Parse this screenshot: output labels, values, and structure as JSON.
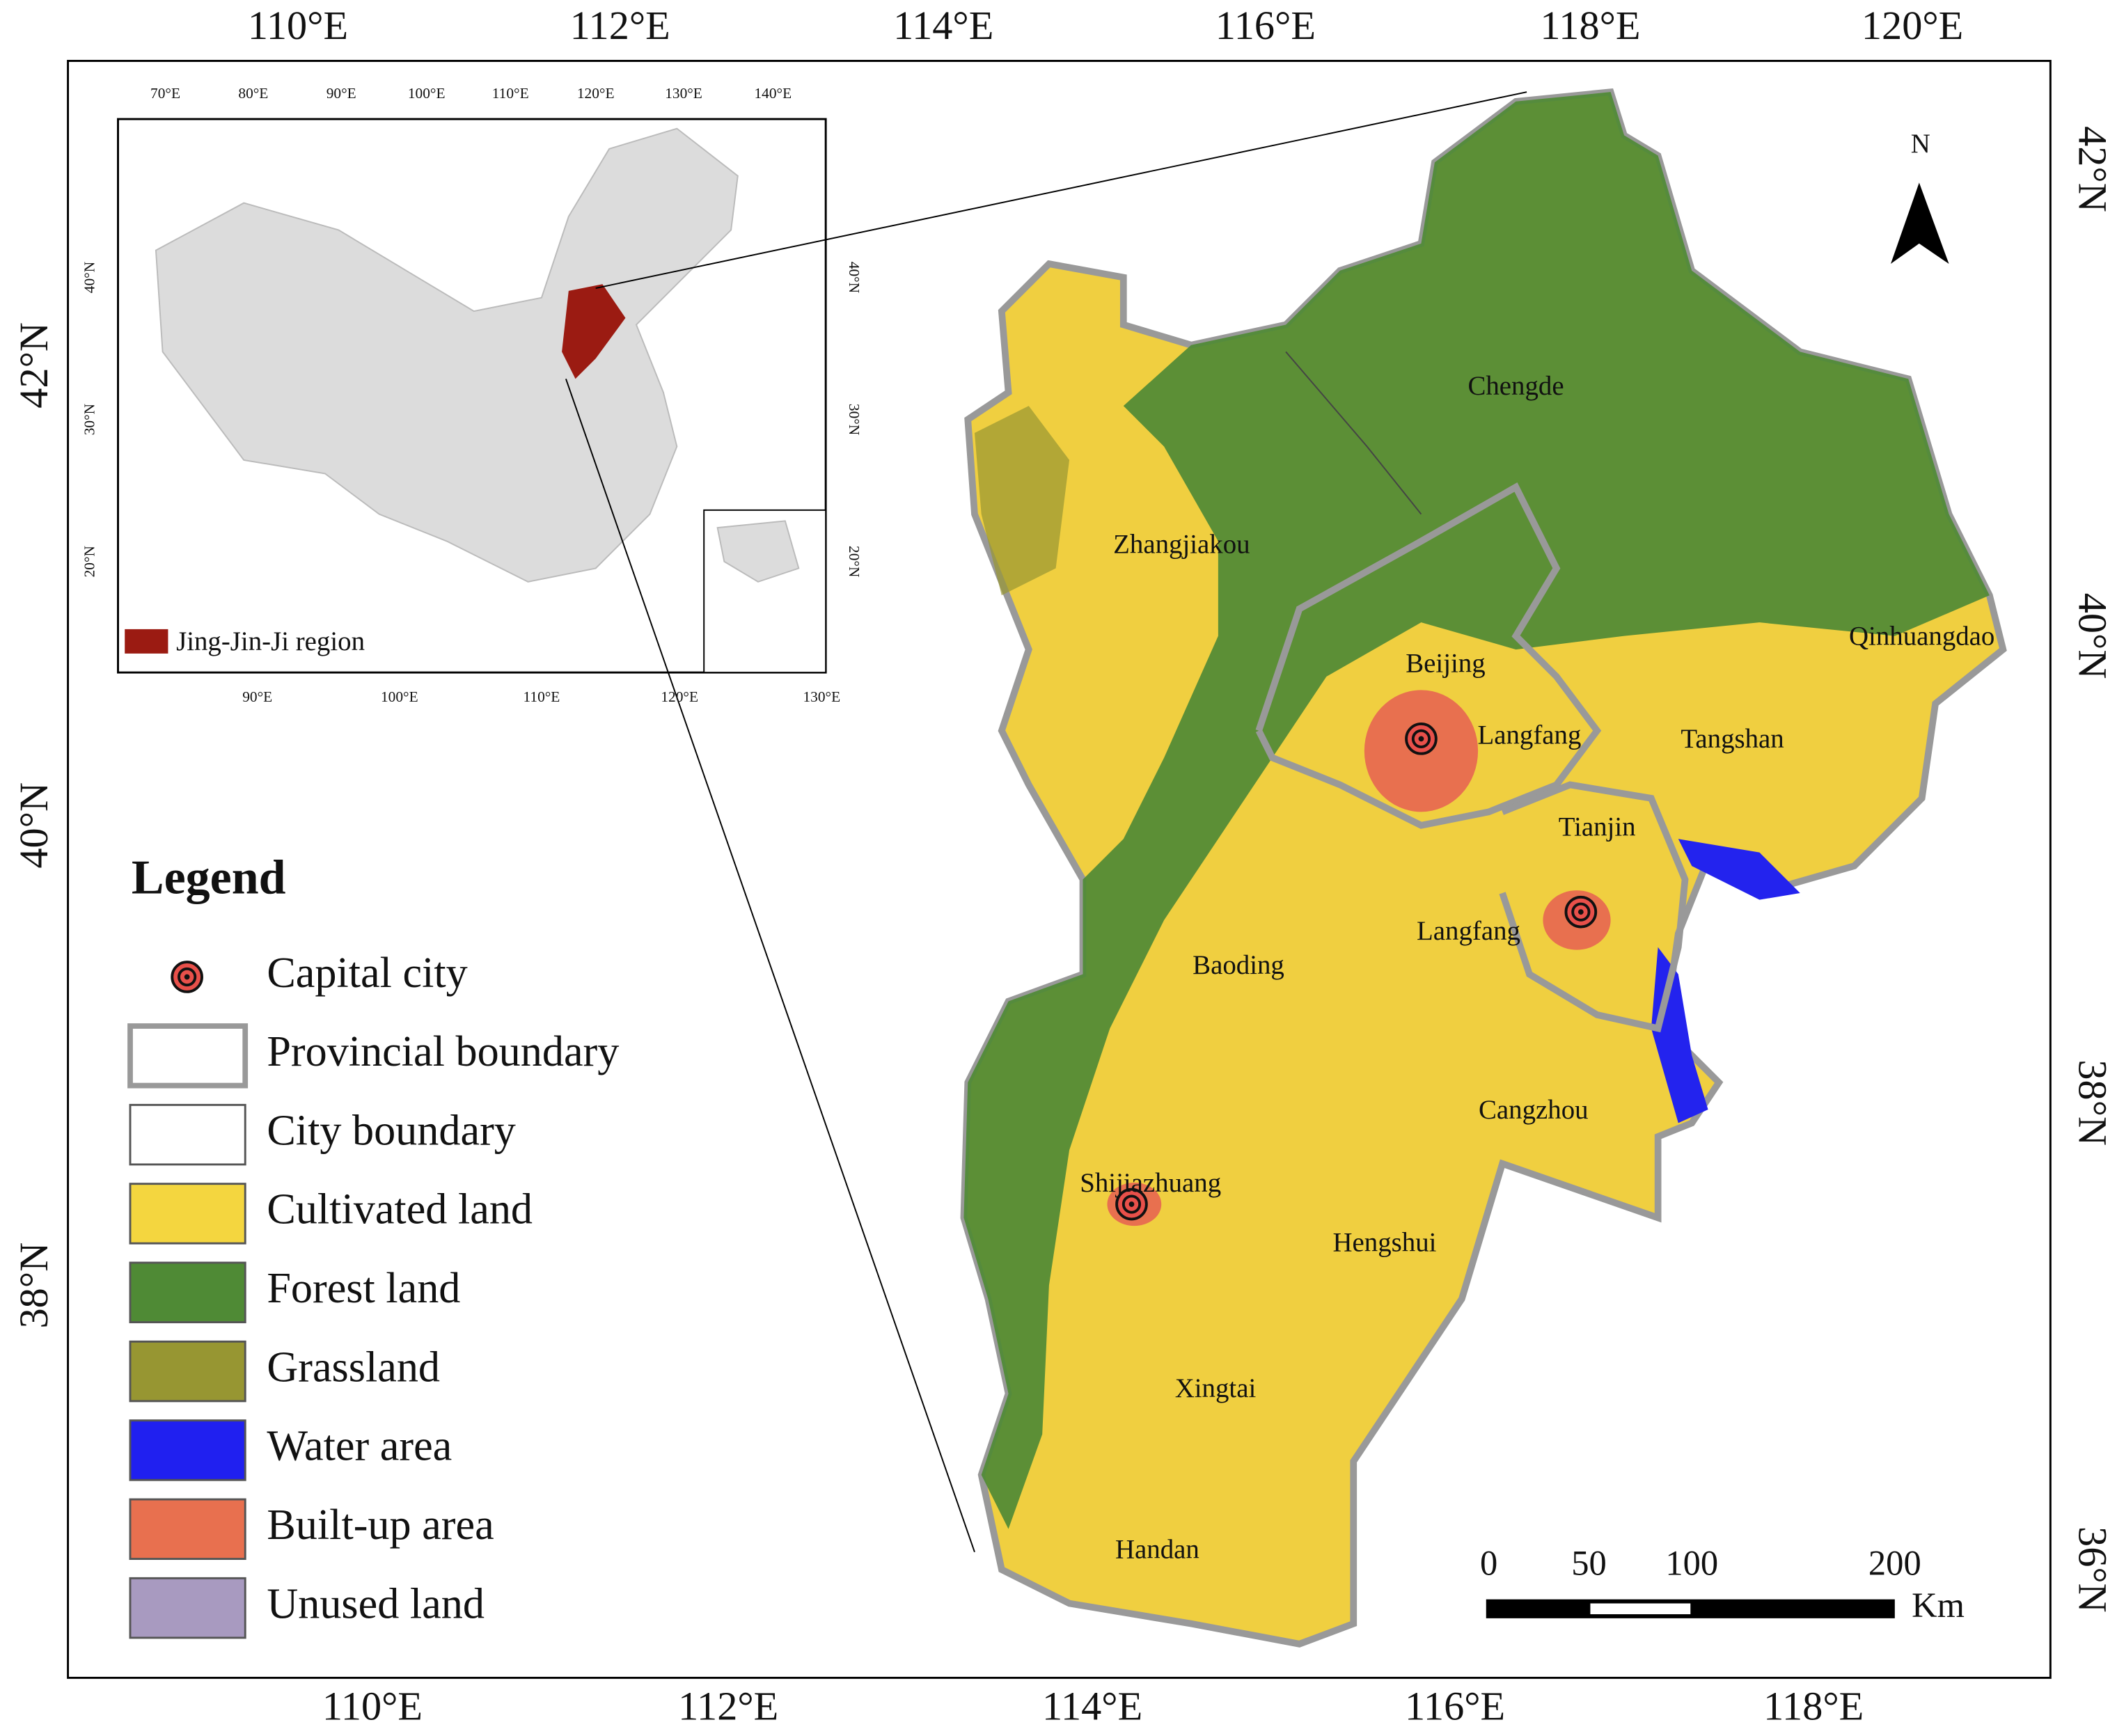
{
  "map": {
    "top_lon_labels": [
      "110°E",
      "112°E",
      "114°E",
      "116°E",
      "118°E",
      "120°E"
    ],
    "bottom_lon_labels": [
      "110°E",
      "112°E",
      "114°E",
      "116°E",
      "118°E"
    ],
    "left_lat_labels": [
      "42°N",
      "40°N",
      "38°N"
    ],
    "right_lat_labels": [
      "42°N",
      "40°N",
      "38°N",
      "36°N"
    ],
    "north": "N",
    "cities": [
      "Chengde",
      "Zhangjiakou",
      "Qinhuangdao",
      "Beijing",
      "Langfang",
      "Tangshan",
      "Tianjin",
      "Langfang",
      "Baoding",
      "Cangzhou",
      "Shijiazhuang",
      "Hengshui",
      "Xingtai",
      "Handan"
    ],
    "scale_bar": {
      "ticks": [
        "0",
        "50",
        "100",
        "200"
      ],
      "unit": "Km"
    }
  },
  "inset": {
    "top_labels": [
      "70°E",
      "80°E",
      "90°E",
      "100°E",
      "110°E",
      "120°E",
      "130°E",
      "140°E"
    ],
    "bottom_labels": [
      "90°E",
      "100°E",
      "110°E",
      "120°E",
      "130°E"
    ],
    "left_labels": [
      "40°N",
      "30°N",
      "20°N"
    ],
    "right_labels": [
      "40°N",
      "30°N",
      "20°N"
    ],
    "legend": "Jing-Jin-Ji region"
  },
  "legend": {
    "title": "Legend",
    "items": [
      "Capital city",
      "Provincial boundary",
      "City boundary",
      "Cultivated land",
      "Forest land",
      "Grassland",
      "Water area",
      "Built-up area",
      "Unused land"
    ]
  }
}
